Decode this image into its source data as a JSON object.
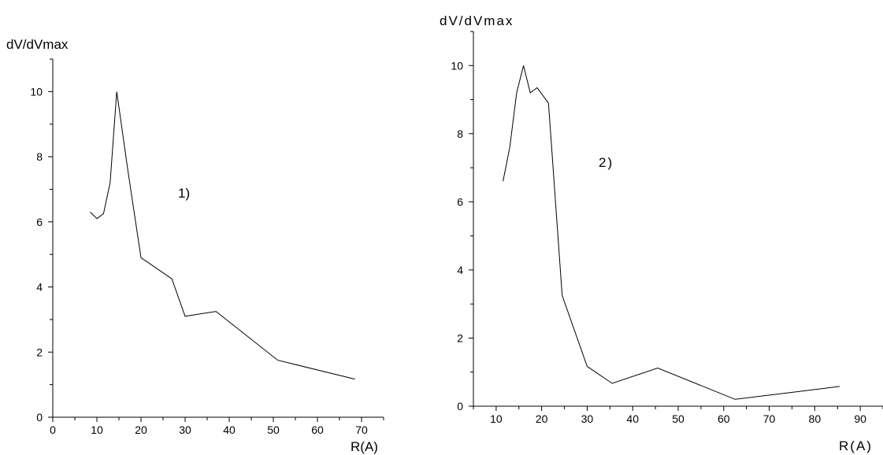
{
  "chart_data": [
    {
      "type": "line",
      "title": "",
      "xlabel": "R(A)",
      "ylabel": "dV/dVmax",
      "annotation": "1)",
      "xlim": [
        0,
        75
      ],
      "ylim": [
        0,
        11
      ],
      "x_ticks": [
        0,
        10,
        20,
        30,
        40,
        50,
        60,
        70
      ],
      "y_ticks": [
        0,
        2,
        4,
        6,
        8,
        10
      ],
      "grid": false,
      "x": [
        8.5,
        10,
        11.5,
        13,
        14.5,
        17,
        20,
        27,
        30,
        37,
        51,
        68.5
      ],
      "y": [
        6.3,
        6.1,
        6.25,
        7.2,
        10.0,
        7.6,
        4.9,
        4.25,
        3.1,
        3.25,
        1.75,
        1.17
      ]
    },
    {
      "type": "line",
      "title": "",
      "xlabel": "R(A)",
      "ylabel": "dV/dVmax",
      "annotation": "2)",
      "xlim": [
        5,
        95
      ],
      "ylim": [
        0,
        11
      ],
      "x_ticks": [
        10,
        20,
        30,
        40,
        50,
        60,
        70,
        80,
        90
      ],
      "y_ticks": [
        0,
        2,
        4,
        6,
        8,
        10
      ],
      "grid": false,
      "x": [
        11.5,
        13,
        14.5,
        16,
        17.5,
        19,
        21.5,
        24.5,
        30,
        35.5,
        45.5,
        62.5,
        85.5
      ],
      "y": [
        6.6,
        7.6,
        9.2,
        10.0,
        9.2,
        9.35,
        8.9,
        3.25,
        1.17,
        0.67,
        1.12,
        0.2,
        0.58
      ]
    }
  ]
}
